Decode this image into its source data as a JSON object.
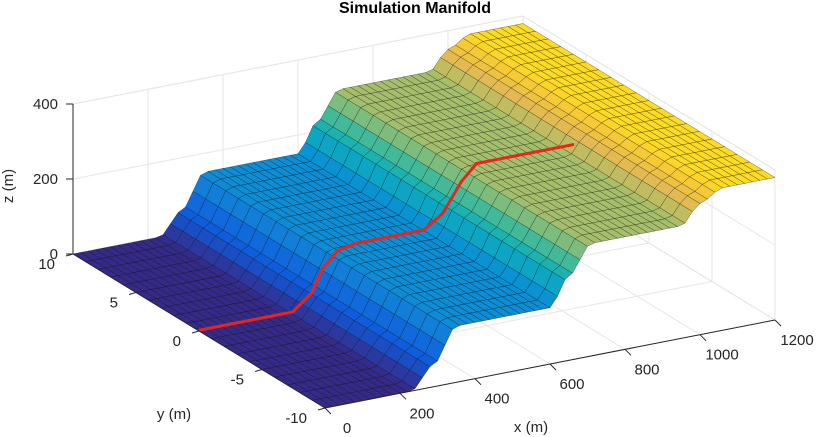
{
  "chart_data": {
    "type": "surface",
    "title": "Simulation Manifold",
    "xlabel": "x (m)",
    "ylabel": "y (m)",
    "zlabel": "z (m)",
    "xlim": [
      0,
      1200
    ],
    "ylim": [
      -10,
      10
    ],
    "zlim": [
      0,
      400
    ],
    "x_ticks": [
      "0",
      "200",
      "400",
      "600",
      "800",
      "1000",
      "1200"
    ],
    "y_ticks": [
      "-10",
      "-5",
      "0",
      "5",
      "10"
    ],
    "z_ticks": [
      "0",
      "200",
      "400"
    ],
    "grid": true,
    "colormap": "parula",
    "surface_profile": {
      "description_x_m": [
        0,
        230,
        290,
        350,
        600,
        650,
        710,
        950,
        1000,
        1060,
        1200
      ],
      "z_m": [
        0,
        0,
        60,
        150,
        150,
        225,
        300,
        300,
        350,
        380,
        380
      ]
    },
    "path_line": {
      "color": "#e8241c",
      "x": [
        0,
        150,
        250,
        300,
        330,
        370,
        420,
        600,
        650,
        700,
        740,
        790,
        1000
      ],
      "y": [
        0,
        0,
        0,
        0,
        0,
        0,
        0,
        0,
        0,
        0,
        0,
        0,
        0
      ],
      "z": [
        0,
        0,
        0,
        40,
        100,
        140,
        150,
        150,
        185,
        260,
        300,
        300,
        300
      ]
    },
    "colors": {
      "axis": "#262626",
      "grid": "#e6e6e6",
      "mesh": "#000000"
    }
  }
}
